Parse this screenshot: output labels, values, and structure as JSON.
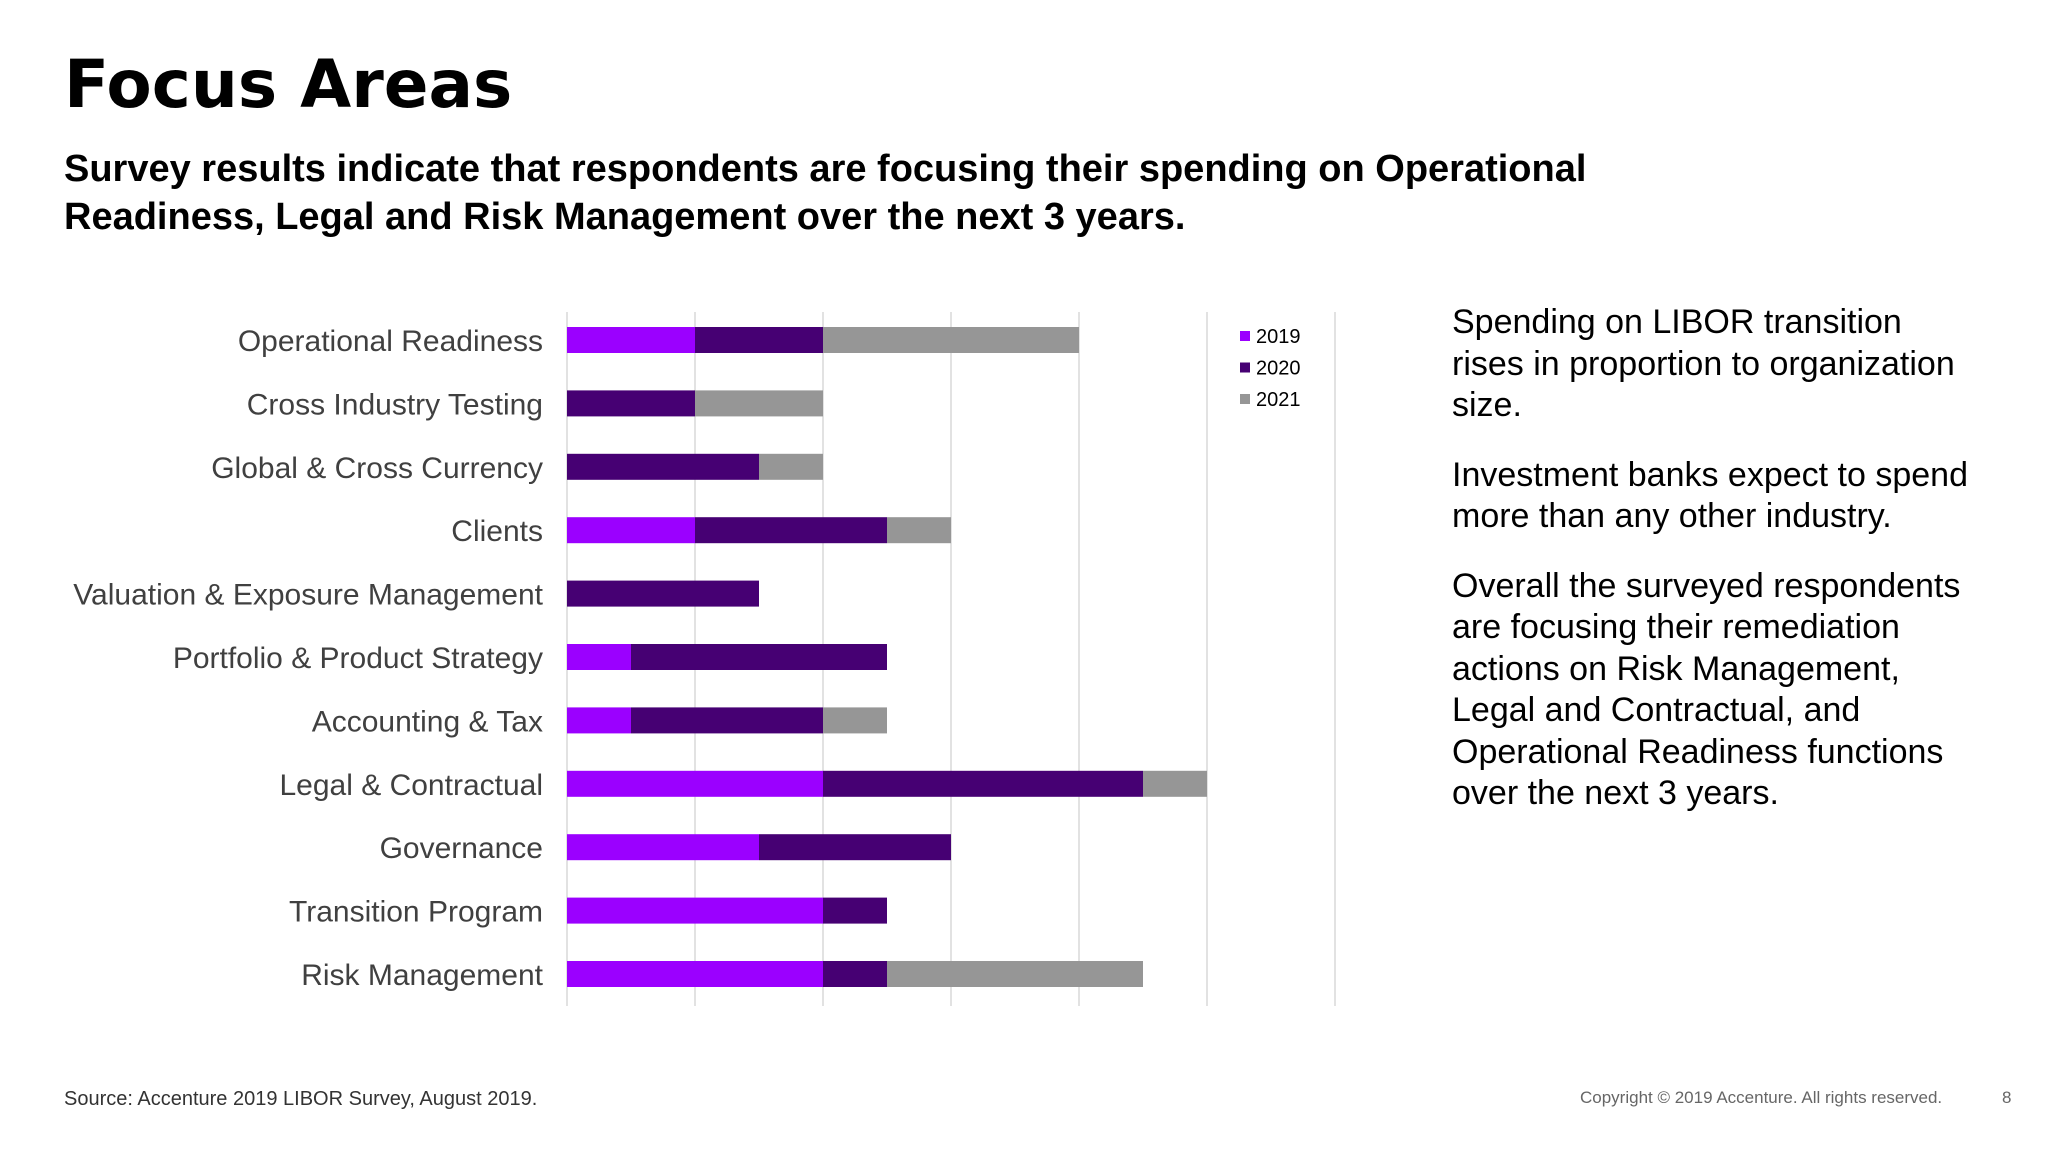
{
  "slide": {
    "title": "Focus Areas",
    "subtitle": "Survey results indicate that respondents are focusing their spending on Operational Readiness, Legal and Risk Management over the next 3 years.",
    "paragraphs": [
      "Spending on LIBOR transition rises in proportion to organization size.",
      "Investment banks expect to spend more than any other industry.",
      "Overall the surveyed respondents are focusing their remediation actions on Risk Management, Legal and Contractual, and Operational Readiness functions over the next 3 years."
    ],
    "source": "Source: Accenture 2019 LIBOR Survey, August 2019.",
    "copyright": "Copyright © 2019 Accenture. All rights reserved.",
    "page_number": "8"
  },
  "chart_data": {
    "type": "bar",
    "orientation": "horizontal",
    "stacked": true,
    "categories": [
      "Operational Readiness",
      "Cross Industry Testing",
      "Global & Cross Currency",
      "Clients",
      "Valuation & Exposure Management",
      "Portfolio & Product Strategy",
      "Accounting & Tax",
      "Legal & Contractual",
      "Governance",
      "Transition Program",
      "Risk Management"
    ],
    "series": [
      {
        "name": "2019",
        "color": "#9B00FF",
        "values": [
          2,
          0,
          0,
          2,
          0,
          1,
          1,
          4,
          3,
          4,
          4
        ]
      },
      {
        "name": "2020",
        "color": "#460073",
        "values": [
          2,
          2,
          3,
          3,
          3,
          4,
          3,
          5,
          3,
          1,
          1
        ]
      },
      {
        "name": "2021",
        "color": "#969696",
        "values": [
          4,
          2,
          1,
          1,
          0,
          0,
          1,
          1,
          0,
          0,
          4
        ]
      }
    ],
    "xlim": [
      0,
      12
    ],
    "grid": true,
    "legend": "top-right",
    "title": "",
    "xlabel": "",
    "ylabel": ""
  }
}
